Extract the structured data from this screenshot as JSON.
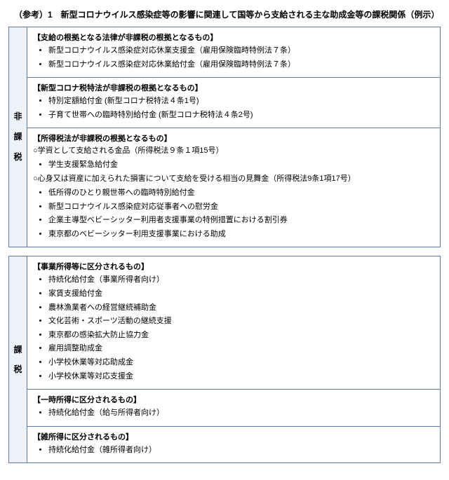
{
  "title": "（参考）1　新型コロナウイルス感染症等の影響に関連して国等から支給される主な助成金等の課税関係（例示）",
  "table1": {
    "row_label": "非\n課\n税",
    "sections": [
      {
        "title": "【支給の根拠となる法律が非課税の根拠となるもの】",
        "subs": [],
        "items": [
          "新型コロナウイルス感染症対応休業支援金（雇用保険臨時特例法７条）",
          "新型コロナウイルス感染症対応休業給付金（雇用保険臨時特例法７条）"
        ]
      },
      {
        "title": "【新型コロナ税特法が非課税の根拠となるもの】",
        "subs": [],
        "items": [
          "特別定額給付金 (新型コロナ税特法４条1号)",
          "子育て世帯への臨時特別給付金 (新型コロナ税特法４条2号)"
        ]
      },
      {
        "title": "【所得税法が非課税の根拠となるもの】",
        "subs": [
          {
            "text": "○学資として支給される金品（所得税法９条１項15号）",
            "items": [
              "学生支援緊急給付金"
            ]
          },
          {
            "text": "○心身又は資産に加えられた損害について支給を受ける相当の見舞金（所得税法9条1項17号）",
            "items": [
              "低所得のひとり親世帯への臨時特別給付金",
              "新型コロナウイルス感染症対応従事者への慰労金",
              "企業主導型ベビーシッター利用者支援事業の特例措置における割引券",
              "東京都のベビーシッター利用支援事業における助成"
            ]
          }
        ],
        "items": []
      }
    ]
  },
  "table2": {
    "row_label": "課\n税",
    "sections": [
      {
        "title": "【事業所得等に区分されるもの】",
        "subs": [],
        "items": [
          "持続化給付金（事業所得者向け）",
          "家賃支援給付金",
          "農林漁業者への経営継続補助金",
          "文化芸術・スポーツ活動の継続支援",
          "東京都の感染拡大防止協力金",
          "雇用調整助成金",
          "小学校休業等対応助成金",
          "小学校休業等対応支援金"
        ]
      },
      {
        "title": "【一時所得に区分されるもの】",
        "subs": [],
        "items": [
          "持続化給付金（給与所得者向け）"
        ]
      },
      {
        "title": "【雑所得に区分されるもの】",
        "subs": [],
        "items": [
          "持続化給付金（雑所得者向け）"
        ]
      }
    ]
  },
  "colors": {
    "border": "#5b7aa6",
    "label_bg": "#eef2f8",
    "text": "#000000",
    "bg": "#ffffff"
  },
  "font_sizes": {
    "title": 12,
    "section": 11,
    "item": 11
  }
}
